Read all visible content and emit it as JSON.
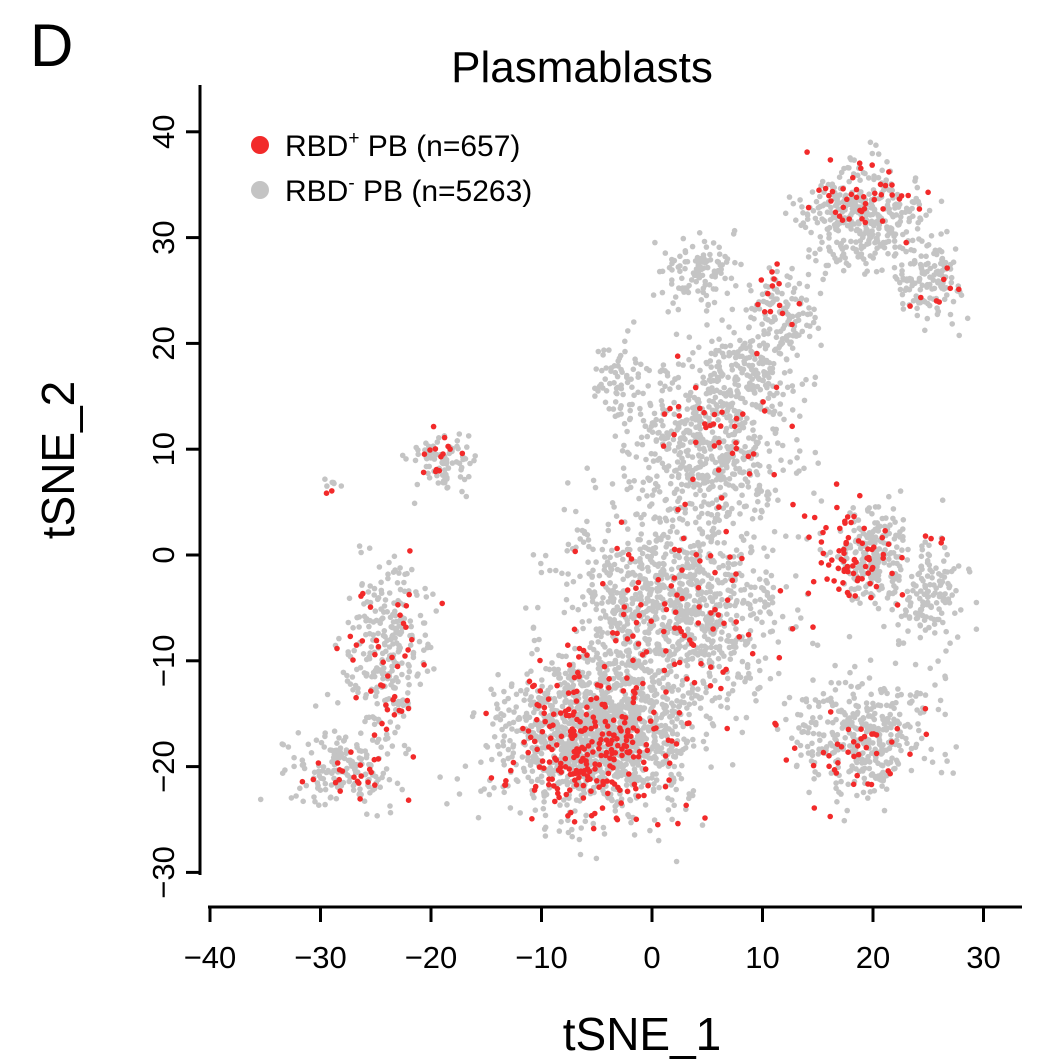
{
  "panel_label": "D",
  "chart_data": {
    "type": "scatter",
    "title": "Plasmablasts",
    "xlabel": "tSNE_1",
    "ylabel": "tSNE_2",
    "xlim": [
      -40,
      31
    ],
    "ylim": [
      -31,
      42
    ],
    "xticks": [
      -40,
      -30,
      -20,
      -10,
      0,
      10,
      20,
      30
    ],
    "yticks": [
      -30,
      -20,
      -10,
      0,
      10,
      20,
      30,
      40
    ],
    "xtick_labels": [
      "−40",
      "−30",
      "−20",
      "−10",
      "0",
      "10",
      "20",
      "30"
    ],
    "ytick_labels": [
      "−30",
      "−20",
      "−10",
      "0",
      "10",
      "20",
      "30",
      "40"
    ],
    "grid": false,
    "legend_position": "top-left",
    "series": [
      {
        "name": "RBD− PB (n=5263)",
        "legend_main": "RBD",
        "legend_sup": "-",
        "legend_rest": " PB (n=5263)",
        "color": "#c4c4c4",
        "count": 5263,
        "clusters": [
          {
            "cx": -5,
            "cy": -17,
            "sx": 7,
            "sy": 6,
            "n": 1350
          },
          {
            "cx": 2,
            "cy": -5,
            "sx": 8,
            "sy": 8,
            "n": 1000
          },
          {
            "cx": 5,
            "cy": 10,
            "sx": 6,
            "sy": 6,
            "n": 500
          },
          {
            "cx": 8,
            "cy": 17,
            "sx": 4,
            "sy": 4,
            "n": 230
          },
          {
            "cx": 4,
            "cy": 27,
            "sx": 3,
            "sy": 2.5,
            "n": 110
          },
          {
            "cx": 19,
            "cy": 32,
            "sx": 4.5,
            "sy": 4,
            "n": 370
          },
          {
            "cx": 25,
            "cy": 26,
            "sx": 2.5,
            "sy": 3,
            "n": 130
          },
          {
            "cx": 12,
            "cy": 23,
            "sx": 2.5,
            "sy": 3,
            "n": 110
          },
          {
            "cx": 19,
            "cy": -17,
            "sx": 5,
            "sy": 4.5,
            "n": 360
          },
          {
            "cx": 20,
            "cy": 0,
            "sx": 3,
            "sy": 4,
            "n": 220
          },
          {
            "cx": 25,
            "cy": -4,
            "sx": 2.5,
            "sy": 4,
            "n": 140
          },
          {
            "cx": -24,
            "cy": -9,
            "sx": 3,
            "sy": 7,
            "n": 260
          },
          {
            "cx": -28,
            "cy": -20,
            "sx": 4,
            "sy": 3,
            "n": 170
          },
          {
            "cx": -19,
            "cy": 9,
            "sx": 2.5,
            "sy": 2.5,
            "n": 80
          },
          {
            "cx": -3,
            "cy": 17,
            "sx": 2,
            "sy": 3,
            "n": 60
          },
          {
            "cx": -29,
            "cy": 7,
            "sx": 0.8,
            "sy": 0.5,
            "n": 6
          }
        ]
      },
      {
        "name": "RBD+ PB (n=657)",
        "legend_main": "RBD",
        "legend_sup": "+",
        "legend_rest": " PB (n=657)",
        "color": "#f22a2a",
        "count": 657,
        "clusters": [
          {
            "cx": -5,
            "cy": -18,
            "sx": 6,
            "sy": 5.5,
            "n": 260
          },
          {
            "cx": 2,
            "cy": -6,
            "sx": 8,
            "sy": 8,
            "n": 90
          },
          {
            "cx": 18,
            "cy": 0,
            "sx": 3,
            "sy": 4,
            "n": 75
          },
          {
            "cx": 19,
            "cy": 33,
            "sx": 4,
            "sy": 3,
            "n": 45
          },
          {
            "cx": 18,
            "cy": -19,
            "sx": 4.5,
            "sy": 3.5,
            "n": 40
          },
          {
            "cx": -24,
            "cy": -10,
            "sx": 3,
            "sy": 7,
            "n": 45
          },
          {
            "cx": -27,
            "cy": -21,
            "sx": 3,
            "sy": 2,
            "n": 22
          },
          {
            "cx": -19,
            "cy": 9,
            "sx": 2,
            "sy": 2,
            "n": 14
          },
          {
            "cx": 6,
            "cy": 12,
            "sx": 5,
            "sy": 6,
            "n": 40
          },
          {
            "cx": 11,
            "cy": 24,
            "sx": 2,
            "sy": 3,
            "n": 14
          },
          {
            "cx": 25,
            "cy": 25,
            "sx": 2,
            "sy": 2,
            "n": 8
          },
          {
            "cx": -29,
            "cy": 6,
            "sx": 0.3,
            "sy": 0.3,
            "n": 2
          },
          {
            "cx": 26,
            "cy": 1,
            "sx": 1,
            "sy": 1,
            "n": 4
          }
        ]
      }
    ]
  }
}
